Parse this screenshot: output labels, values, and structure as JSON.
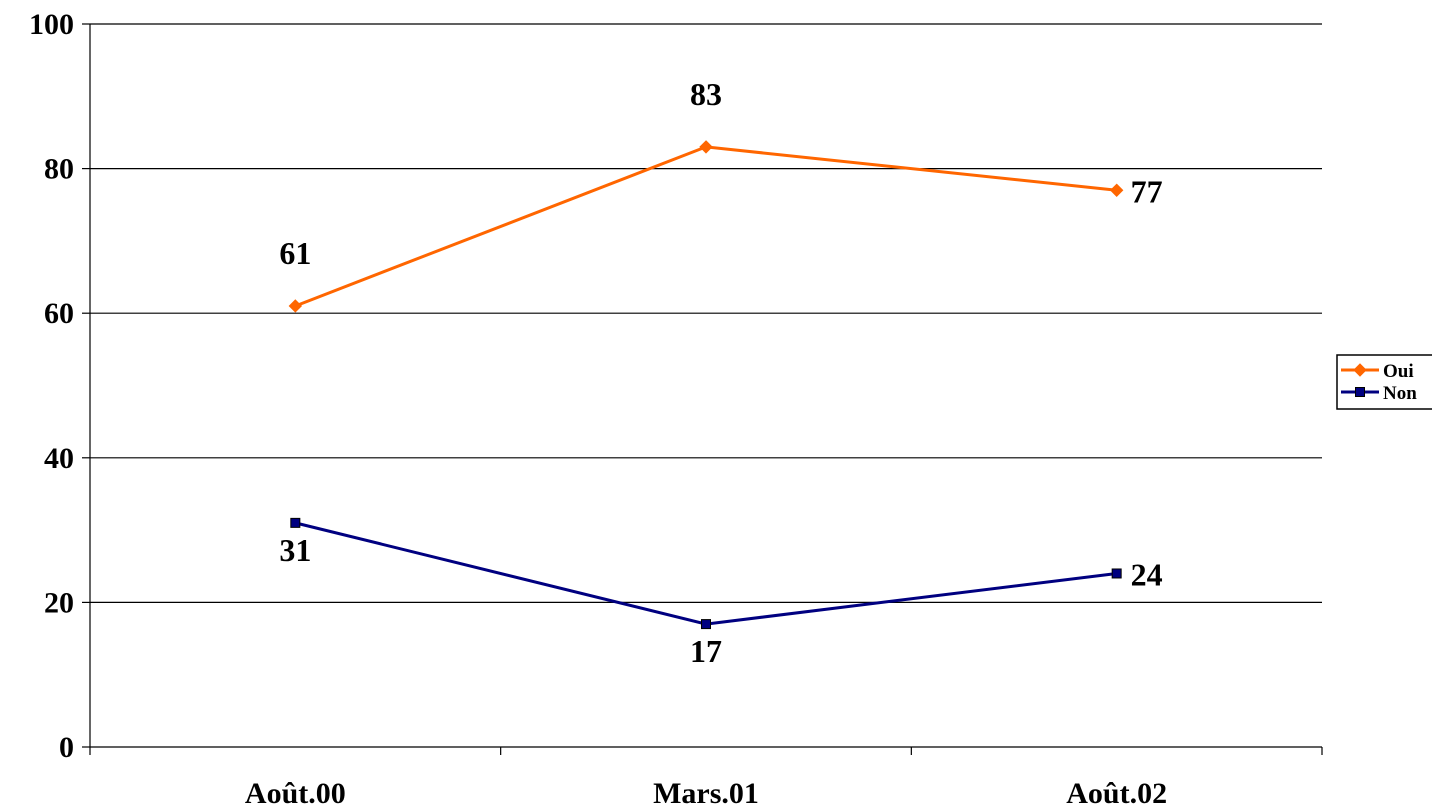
{
  "chart_data": {
    "type": "line",
    "categories": [
      "Août.00",
      "Mars.01",
      "Août.02"
    ],
    "ylim": [
      0,
      100
    ],
    "yticks": [
      0,
      20,
      40,
      60,
      80,
      100
    ],
    "grid": true,
    "legend_position": "right",
    "series": [
      {
        "name": "Oui",
        "values": [
          61,
          83,
          77
        ],
        "color": "#ff6600",
        "marker": "diamond"
      },
      {
        "name": "Non",
        "values": [
          31,
          17,
          24
        ],
        "color": "#000080",
        "marker": "square"
      }
    ],
    "title": "",
    "xlabel": "",
    "ylabel": ""
  }
}
